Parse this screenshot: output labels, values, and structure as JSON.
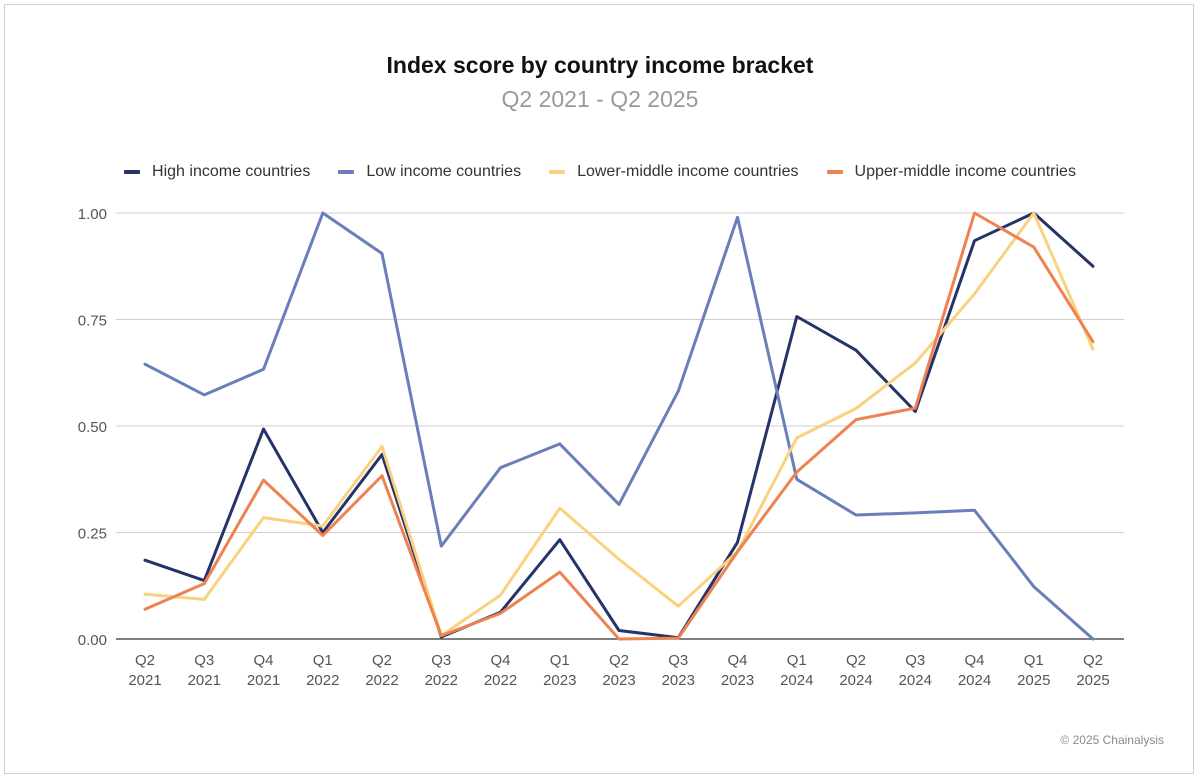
{
  "chart_data": {
    "type": "line",
    "title": "Index score by country income bracket",
    "subtitle": "Q2 2021 - Q2 2025",
    "x": [
      [
        "Q2",
        "2021"
      ],
      [
        "Q3",
        "2021"
      ],
      [
        "Q4",
        "2021"
      ],
      [
        "Q1",
        "2022"
      ],
      [
        "Q2",
        "2022"
      ],
      [
        "Q3",
        "2022"
      ],
      [
        "Q4",
        "2022"
      ],
      [
        "Q1",
        "2023"
      ],
      [
        "Q2",
        "2023"
      ],
      [
        "Q3",
        "2023"
      ],
      [
        "Q4",
        "2023"
      ],
      [
        "Q1",
        "2024"
      ],
      [
        "Q2",
        "2024"
      ],
      [
        "Q3",
        "2024"
      ],
      [
        "Q4",
        "2024"
      ],
      [
        "Q1",
        "2025"
      ],
      [
        "Q2",
        "2025"
      ]
    ],
    "yticks": [
      "0.00",
      "0.25",
      "0.50",
      "0.75",
      "1.00"
    ],
    "ylim": [
      0,
      1
    ],
    "grid": true,
    "legend_position": "top",
    "series": [
      {
        "name": "High income countries",
        "color": "#26336b",
        "values": [
          0.185,
          0.137,
          0.493,
          0.25,
          0.433,
          0.005,
          0.063,
          0.233,
          0.02,
          0.003,
          0.227,
          0.757,
          0.678,
          0.534,
          0.935,
          1.0,
          0.875
        ]
      },
      {
        "name": "Low income countries",
        "color": "#6a7fb9",
        "values": [
          0.645,
          0.573,
          0.633,
          1.0,
          0.905,
          0.218,
          0.402,
          0.458,
          0.316,
          0.582,
          0.99,
          0.375,
          0.291,
          0.296,
          0.302,
          0.123,
          0.0
        ]
      },
      {
        "name": "Lower-middle income countries",
        "color": "#fad27f",
        "values": [
          0.105,
          0.093,
          0.285,
          0.265,
          0.452,
          0.008,
          0.103,
          0.307,
          0.187,
          0.077,
          0.205,
          0.472,
          0.541,
          0.648,
          0.81,
          1.0,
          0.68
        ]
      },
      {
        "name": "Upper-middle income countries",
        "color": "#ee8250",
        "values": [
          0.07,
          0.13,
          0.373,
          0.243,
          0.383,
          0.008,
          0.06,
          0.157,
          0.0,
          0.002,
          0.205,
          0.392,
          0.515,
          0.542,
          1.0,
          0.92,
          0.698
        ]
      }
    ]
  },
  "footer": {
    "copyright": "© 2025 Chainalysis"
  }
}
